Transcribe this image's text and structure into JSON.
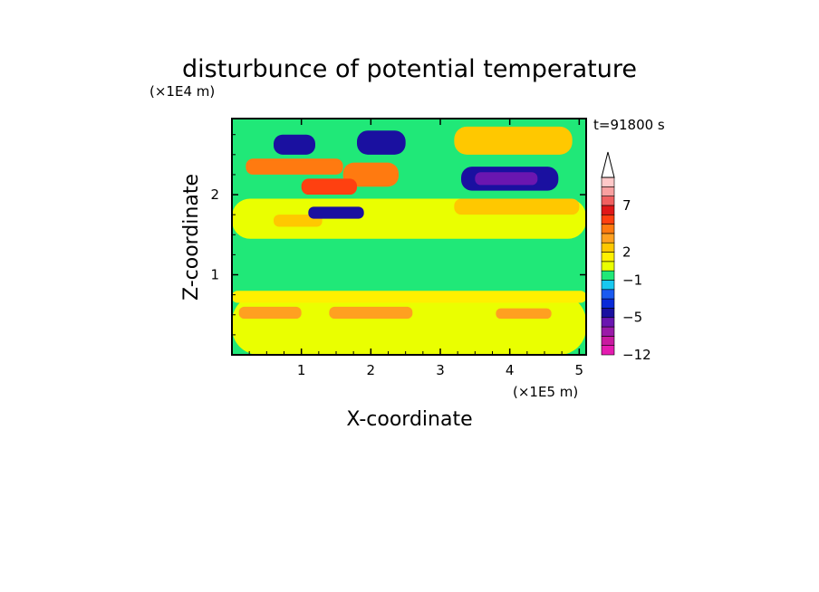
{
  "chart_data": {
    "type": "heatmap",
    "title": "disturbunce of potential temperature",
    "xlabel": "X-coordinate",
    "ylabel": "Z-coordinate",
    "x_scale_label": "(×1E5 m)",
    "y_scale_label": "(×1E4 m)",
    "time_label": "t=91800 s",
    "xlim": [
      0,
      5.1
    ],
    "ylim": [
      0,
      2.95
    ],
    "x_ticks": [
      "1",
      "2",
      "3",
      "4",
      "5"
    ],
    "y_ticks": [
      "1",
      "2"
    ],
    "colorbar": {
      "levels": [
        -12,
        -10,
        -8,
        -6,
        -5,
        -4,
        -3,
        -2,
        -1,
        0,
        1,
        2,
        3,
        4,
        5,
        6,
        7,
        8,
        9,
        10
      ],
      "colors": [
        "#e41bb0",
        "#c81aa0",
        "#9a1aa8",
        "#6a16b0",
        "#1a10a0",
        "#0a2ad8",
        "#1a5af0",
        "#18c8f0",
        "#20e878",
        "#eaff00",
        "#fff000",
        "#ffc800",
        "#ffa020",
        "#ff7a10",
        "#ff4010",
        "#e01818",
        "#f06060",
        "#f8a0a0",
        "#ffc8c8",
        "#ffffff"
      ],
      "labels": [
        "7",
        "2",
        "-1",
        "-5",
        "-12"
      ]
    },
    "regions": [
      {
        "level": 0,
        "x": [
          0,
          5.1
        ],
        "z": [
          0,
          0.75
        ]
      },
      {
        "level": 1,
        "x": [
          0,
          5.1
        ],
        "z": [
          0.65,
          0.8
        ]
      },
      {
        "level": 3,
        "x": [
          0.1,
          1.0
        ],
        "z": [
          0.45,
          0.6
        ]
      },
      {
        "level": 3,
        "x": [
          1.4,
          2.6
        ],
        "z": [
          0.45,
          0.6
        ]
      },
      {
        "level": 3,
        "x": [
          3.8,
          4.6
        ],
        "z": [
          0.45,
          0.58
        ]
      },
      {
        "level": -1,
        "x": [
          0,
          5.1
        ],
        "z": [
          0.85,
          1.35
        ]
      },
      {
        "level": 0,
        "x": [
          0,
          5.1
        ],
        "z": [
          1.45,
          1.95
        ]
      },
      {
        "level": 2,
        "x": [
          0.6,
          1.3
        ],
        "z": [
          1.6,
          1.75
        ]
      },
      {
        "level": 2,
        "x": [
          3.2,
          5.0
        ],
        "z": [
          1.75,
          1.95
        ]
      },
      {
        "level": 4,
        "x": [
          0.2,
          1.6
        ],
        "z": [
          2.25,
          2.45
        ]
      },
      {
        "level": 4,
        "x": [
          1.6,
          2.4
        ],
        "z": [
          2.1,
          2.4
        ]
      },
      {
        "level": 5,
        "x": [
          1.0,
          1.8
        ],
        "z": [
          2.0,
          2.2
        ]
      },
      {
        "level": -5,
        "x": [
          3.3,
          4.7
        ],
        "z": [
          2.05,
          2.35
        ]
      },
      {
        "level": -6,
        "x": [
          3.5,
          4.4
        ],
        "z": [
          2.12,
          2.28
        ]
      },
      {
        "level": -5,
        "x": [
          1.1,
          1.9
        ],
        "z": [
          1.7,
          1.85
        ]
      },
      {
        "level": -5,
        "x": [
          0.6,
          1.2
        ],
        "z": [
          2.5,
          2.75
        ]
      },
      {
        "level": -5,
        "x": [
          1.8,
          2.5
        ],
        "z": [
          2.5,
          2.8
        ]
      },
      {
        "level": 2,
        "x": [
          3.2,
          4.9
        ],
        "z": [
          2.5,
          2.85
        ]
      }
    ]
  }
}
